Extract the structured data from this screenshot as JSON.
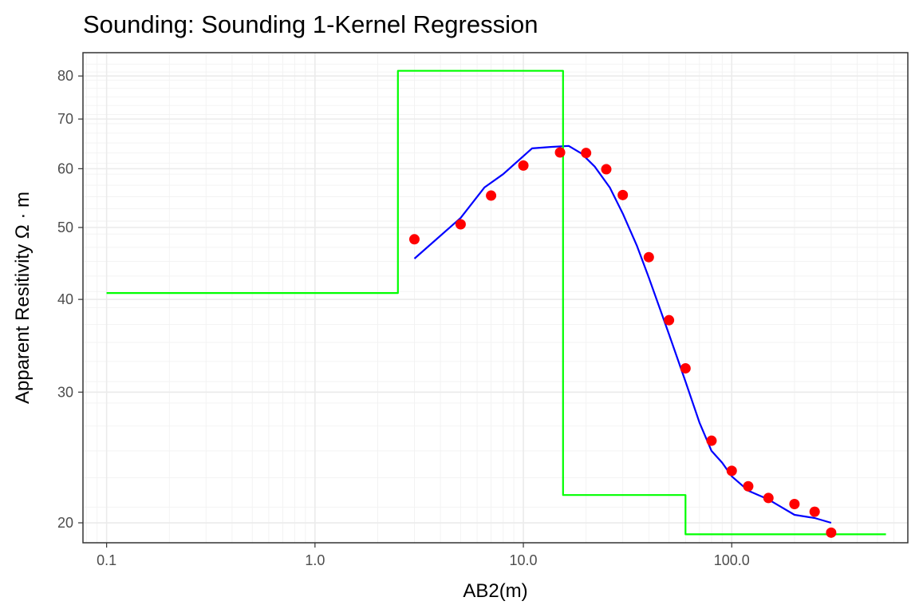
{
  "chart_data": {
    "type": "line",
    "title": "Sounding:  Sounding 1-Kernel Regression",
    "xlabel": "AB2(m)",
    "ylabel": "Apparent Resitivity Ω · m",
    "x_scale": "log10",
    "y_scale": "log10",
    "xlim": [
      0.077,
      700
    ],
    "ylim": [
      18.8,
      86
    ],
    "x_ticks": [
      0.1,
      1,
      10,
      100
    ],
    "x_tick_labels": [
      "0.1",
      "1.0",
      "10.0",
      "100.0"
    ],
    "y_ticks": [
      20,
      30,
      40,
      50,
      60,
      70,
      80
    ],
    "y_tick_labels": [
      "20",
      "30",
      "40",
      "50",
      "60",
      "70",
      "80"
    ],
    "grid": true,
    "legend": "none",
    "series": [
      {
        "kind": "points",
        "color": "#ff0000",
        "x": [
          3,
          5,
          7,
          10,
          15,
          20,
          25,
          30,
          40,
          50,
          60,
          80,
          100,
          120,
          150,
          200,
          250,
          300
        ],
        "y": [
          48.2,
          50.5,
          55.2,
          60.6,
          63.1,
          63.0,
          59.9,
          55.3,
          45.6,
          37.5,
          32.3,
          25.8,
          23.5,
          22.4,
          21.6,
          21.2,
          20.7,
          19.4
        ]
      },
      {
        "kind": "line",
        "color": "#0000ff",
        "x": [
          3,
          5,
          6.5,
          8,
          11,
          13.5,
          16.5,
          19,
          22,
          26,
          30,
          35,
          40,
          45,
          50,
          60,
          70,
          80,
          90,
          100,
          120,
          150,
          200,
          250,
          300
        ],
        "y": [
          45.4,
          51.5,
          56.6,
          59.0,
          63.9,
          64.2,
          64.4,
          62.9,
          60.4,
          56.6,
          52.2,
          47.3,
          42.8,
          39.0,
          35.9,
          31.0,
          27.3,
          25.0,
          24.1,
          23.1,
          22.1,
          21.5,
          20.5,
          20.3,
          20.0
        ]
      },
      {
        "kind": "step",
        "color": "#00ff00",
        "x": [
          0.1,
          2.5,
          2.5,
          15.5,
          15.5,
          60,
          60,
          550
        ],
        "y": [
          40.8,
          40.8,
          81.3,
          81.3,
          21.8,
          21.8,
          19.3,
          19.3
        ]
      }
    ]
  }
}
